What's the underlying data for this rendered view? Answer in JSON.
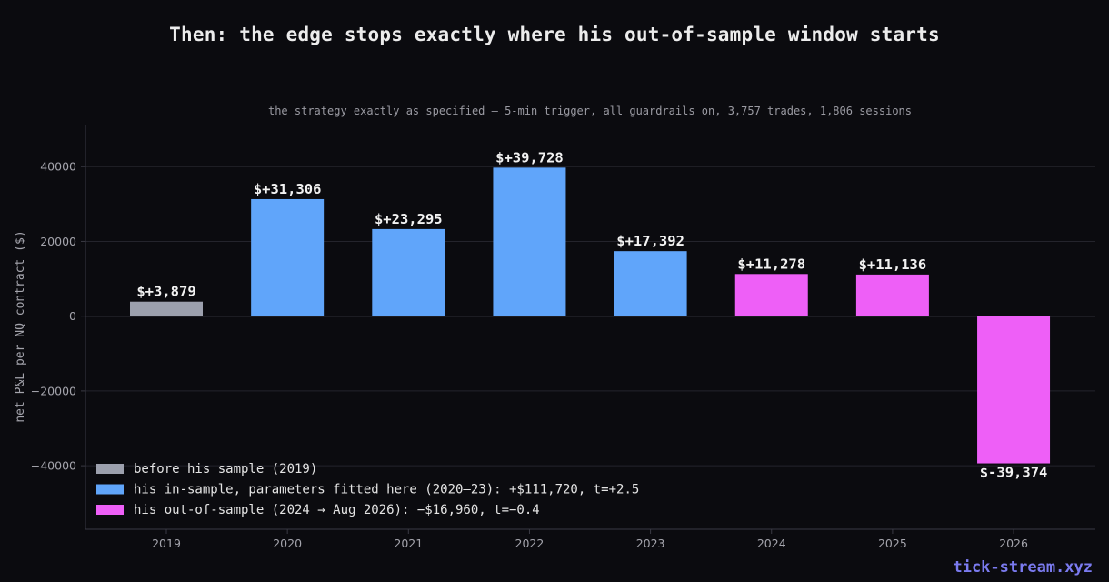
{
  "header": {
    "title": "Then: the edge stops exactly where his out-of-sample window starts",
    "subtitle": "the strategy exactly as specified — 5-min trigger, all guardrails on, 3,757 trades, 1,806 sessions"
  },
  "watermark": "tick-stream.xyz",
  "colors": {
    "background": "#0b0b0f",
    "grid": "#24242c",
    "axis": "#3a3a44",
    "before_sample": "#9ca0ad",
    "in_sample": "#60a5fa",
    "out_of_sample": "#ee5ff7"
  },
  "chart_data": {
    "type": "bar",
    "title": "Then: the edge stops exactly where his out-of-sample window starts",
    "subtitle": "the strategy exactly as specified — 5-min trigger, all guardrails on, 3,757 trades, 1,806 sessions",
    "xlabel": "",
    "ylabel": "net P&L per NQ contract ($)",
    "categories": [
      "2019",
      "2020",
      "2021",
      "2022",
      "2023",
      "2024",
      "2025",
      "2026"
    ],
    "values": [
      3879,
      31306,
      23295,
      39728,
      17392,
      11278,
      11136,
      -39374
    ],
    "data_labels": [
      "$+3,879",
      "$+31,306",
      "$+23,295",
      "$+39,728",
      "$+17,392",
      "$+11,278",
      "$+11,136",
      "$-39,374"
    ],
    "groups": [
      "before_sample",
      "in_sample",
      "in_sample",
      "in_sample",
      "in_sample",
      "out_of_sample",
      "out_of_sample",
      "out_of_sample"
    ],
    "ylim": [
      -57000,
      51000
    ],
    "yticks": [
      -40000,
      -20000,
      0,
      20000,
      40000
    ],
    "ytick_labels": [
      "−40000",
      "−20000",
      "0",
      "20000",
      "40000"
    ],
    "grid": true,
    "legend_position": "bottom-left",
    "legend": [
      {
        "group": "before_sample",
        "label": "before his sample (2019)"
      },
      {
        "group": "in_sample",
        "label": "his in-sample, parameters fitted here (2020–23): +$111,720, t=+2.5"
      },
      {
        "group": "out_of_sample",
        "label": "his out-of-sample (2024 → Aug 2026): −$16,960, t=−0.4"
      }
    ]
  }
}
